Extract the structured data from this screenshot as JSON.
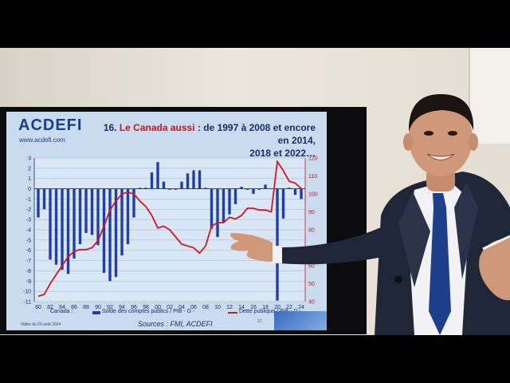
{
  "slide": {
    "logo": "ACDEFI",
    "logo_url": "www.acdefi.com",
    "title_prefix": "16. ",
    "title_highlight": "Le Canada aussi",
    "title_line1_rest": " : de 1997 à 2008 et encore en 2014,",
    "title_line2": "2018 et 2022…",
    "country_label": "Canada :",
    "legend_bars": "Solde des comptes publics / PIB - G -",
    "legend_line": "Dette publique / PIB - D -",
    "footer_left": "Vidéo du 20 août 2024",
    "sources": "Sources : FMI, ACDEFI",
    "page_number": "17"
  },
  "chart_data": {
    "type": "bar",
    "x_tick_labels": [
      "80",
      "82",
      "84",
      "86",
      "88",
      "90",
      "92",
      "94",
      "96",
      "98",
      "00",
      "02",
      "04",
      "06",
      "08",
      "10",
      "12",
      "14",
      "16",
      "18",
      "20",
      "22",
      "24"
    ],
    "left_axis_ticks": [
      "3",
      "2",
      "1",
      "0",
      "-1",
      "-2",
      "-3",
      "-4",
      "-5",
      "-6",
      "-7",
      "-8",
      "-9",
      "-10",
      "-11"
    ],
    "right_axis_ticks": [
      "120",
      "110",
      "100",
      "90",
      "80",
      "70",
      "60",
      "50",
      "40"
    ],
    "years": [
      1980,
      1981,
      1982,
      1983,
      1984,
      1985,
      1986,
      1987,
      1988,
      1989,
      1990,
      1991,
      1992,
      1993,
      1994,
      1995,
      1996,
      1997,
      1998,
      1999,
      2000,
      2001,
      2002,
      2003,
      2004,
      2005,
      2006,
      2007,
      2008,
      2009,
      2010,
      2011,
      2012,
      2013,
      2014,
      2015,
      2016,
      2017,
      2018,
      2019,
      2020,
      2021,
      2022,
      2023,
      2024
    ],
    "series": [
      {
        "name": "Solde des comptes publics / PIB - G -",
        "axis": "left",
        "color": "#1f3fa8",
        "values": [
          -2.8,
          -2.0,
          -6.9,
          -7.4,
          -7.9,
          -8.3,
          -6.8,
          -5.4,
          -4.3,
          -4.5,
          -5.5,
          -8.2,
          -9.0,
          -8.6,
          -6.5,
          -5.4,
          -2.8,
          0.1,
          0.1,
          1.6,
          2.6,
          0.7,
          -0.1,
          -0.1,
          0.7,
          1.5,
          1.8,
          1.8,
          0.1,
          -3.9,
          -4.7,
          -3.3,
          -2.5,
          -1.5,
          0.2,
          -0.1,
          -0.5,
          -0.1,
          0.4,
          0.0,
          -10.9,
          -2.9,
          0.1,
          -0.6,
          -1.0
        ]
      },
      {
        "name": "Dette publique / PIB - D -",
        "axis": "right",
        "color": "#d7141a",
        "values": [
          43,
          44,
          50,
          55,
          60,
          65,
          68,
          69,
          69,
          70,
          74,
          82,
          91,
          96,
          100,
          101,
          100,
          96,
          93,
          88,
          81,
          82,
          80,
          76,
          72,
          71,
          70,
          67,
          71,
          82,
          84,
          84,
          87,
          86,
          88,
          92,
          92,
          91,
          91,
          90,
          118,
          113,
          107,
          106,
          103
        ]
      }
    ],
    "ylim_left": [
      -11,
      3
    ],
    "ylim_right": [
      40,
      120
    ],
    "grid": true
  }
}
